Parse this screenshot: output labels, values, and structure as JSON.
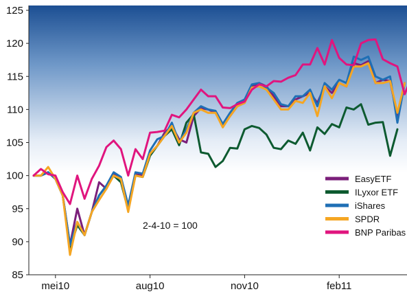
{
  "chart_data": {
    "type": "line",
    "title": "",
    "xlabel": "",
    "ylabel": "",
    "ylim": [
      85,
      125
    ],
    "yticks": [
      85,
      90,
      95,
      100,
      105,
      110,
      115,
      120,
      125
    ],
    "xticks": [
      {
        "label": "mei10",
        "week": 3
      },
      {
        "label": "aug10",
        "week": 16
      },
      {
        "label": "nov10",
        "week": 29
      },
      {
        "label": "feb11",
        "week": 42
      }
    ],
    "annotation": "2-4-10 = 100",
    "legend_position": "bottom-right",
    "grid": false,
    "background": "gradient from dark blue at top to white at bottom",
    "series": [
      {
        "name": "EasyETF",
        "color": "#7b1f7a",
        "values": [
          100,
          100,
          100.5,
          99.5,
          97,
          89.5,
          95,
          91,
          94.5,
          99,
          98,
          100.2,
          99.5,
          95,
          100.2,
          100,
          103.3,
          104.5,
          106.5,
          107.5,
          105.5,
          105,
          109,
          110.2,
          110,
          109.5,
          107.5,
          109,
          110.5,
          111,
          113.5,
          114,
          113.5,
          112,
          110.5,
          110.5,
          111.5,
          112,
          112.5,
          111,
          113.5,
          112.5,
          114,
          113.5,
          117,
          116.7,
          117.3,
          114,
          114.5,
          114.3,
          109,
          114
        ]
      },
      {
        "name": "ILyxor ETF",
        "color": "#0d5a30",
        "values": [
          100,
          100,
          100.5,
          99.5,
          97,
          89,
          92.5,
          91,
          94.5,
          97,
          98.5,
          100,
          99,
          94.8,
          100,
          99.8,
          103,
          104.5,
          106,
          107,
          104.6,
          108,
          109.3,
          103.5,
          103.3,
          101.3,
          102.2,
          104.2,
          104.1,
          107,
          107.5,
          107.2,
          106.2,
          104.2,
          104,
          105.3,
          104.8,
          106.5,
          103.8,
          107.3,
          106.3,
          107.8,
          107.3,
          110.3,
          110,
          110.8,
          107.7,
          108,
          108.1,
          103,
          107
        ]
      },
      {
        "name": "iShares",
        "color": "#1f6fb5",
        "values": [
          100,
          100,
          100.5,
          99.5,
          97,
          89.5,
          93,
          91,
          94.5,
          97,
          98.5,
          100.5,
          99.8,
          95.5,
          100.5,
          100.3,
          103.8,
          105.5,
          106,
          108,
          105,
          107,
          109.5,
          110.5,
          110,
          109.8,
          107.8,
          109.5,
          111,
          111.5,
          113.8,
          114,
          113.3,
          112.5,
          110.8,
          110.5,
          112,
          112,
          113,
          110.5,
          114,
          113,
          114.5,
          114,
          118,
          117.5,
          118,
          115,
          114.5,
          115,
          108,
          114
        ]
      },
      {
        "name": "SPDR",
        "color": "#f5a623",
        "values": [
          100,
          100,
          101.3,
          99.5,
          97,
          88,
          93,
          91,
          94.5,
          96.3,
          98,
          100,
          99.5,
          94.5,
          100,
          99.8,
          103.3,
          104.5,
          106,
          107.5,
          105,
          106.5,
          109.5,
          110,
          109.5,
          109.5,
          107.3,
          109,
          110.5,
          111,
          113.3,
          113.5,
          113,
          111.5,
          110,
          110,
          111.3,
          111,
          112.5,
          109,
          113.5,
          111.7,
          114,
          113.5,
          116.5,
          116.5,
          117,
          114,
          114,
          114.3,
          109.5,
          114
        ]
      },
      {
        "name": "BNP Paribas",
        "color": "#e0157e",
        "values": [
          100,
          101,
          100.2,
          100,
          97.5,
          95.7,
          100,
          96.5,
          99.5,
          101.5,
          104.3,
          105.3,
          104,
          100,
          104,
          102.5,
          106.5,
          106.6,
          106.8,
          109.2,
          108.8,
          110,
          111.5,
          113,
          112,
          112,
          110.3,
          110.2,
          110.8,
          111.2,
          113,
          113.8,
          113.5,
          114.3,
          114.2,
          114.8,
          115.2,
          116.8,
          116.8,
          119.3,
          116.8,
          120.5,
          117.8,
          116.8,
          116.7,
          120,
          120.5,
          120.6,
          117.6,
          117,
          116.5,
          112.3,
          115
        ]
      }
    ]
  }
}
